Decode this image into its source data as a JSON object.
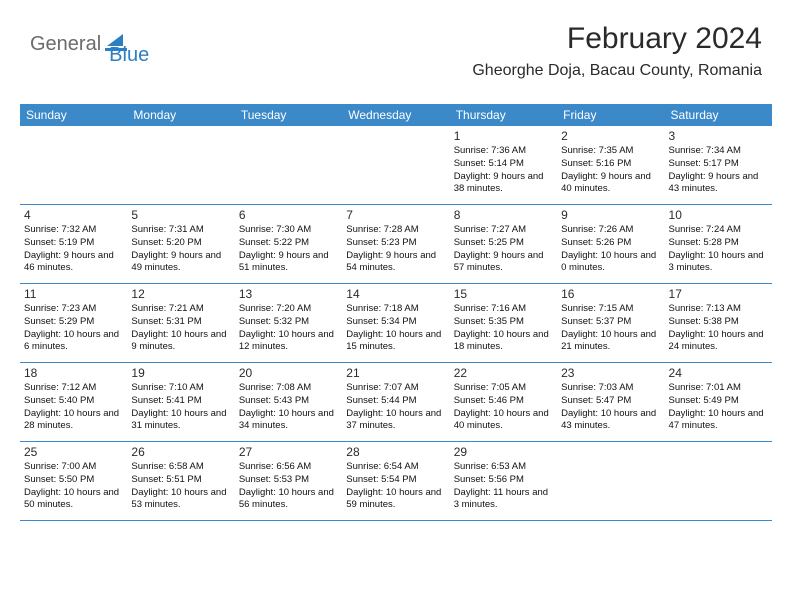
{
  "brand": {
    "part1": "General",
    "part2": "Blue"
  },
  "title": "February 2024",
  "location": "Gheorghe Doja, Bacau County, Romania",
  "colors": {
    "header_bg": "#3b89c9",
    "header_text": "#ffffff",
    "rule": "#3b89c9",
    "logo_gray": "#6b6b6b",
    "logo_blue": "#2d7fc4",
    "text": "#2a2a2a"
  },
  "dayNames": [
    "Sunday",
    "Monday",
    "Tuesday",
    "Wednesday",
    "Thursday",
    "Friday",
    "Saturday"
  ],
  "weeks": [
    [
      null,
      null,
      null,
      null,
      {
        "n": "1",
        "sr": "7:36 AM",
        "ss": "5:14 PM",
        "dl": "9 hours and 38 minutes."
      },
      {
        "n": "2",
        "sr": "7:35 AM",
        "ss": "5:16 PM",
        "dl": "9 hours and 40 minutes."
      },
      {
        "n": "3",
        "sr": "7:34 AM",
        "ss": "5:17 PM",
        "dl": "9 hours and 43 minutes."
      }
    ],
    [
      {
        "n": "4",
        "sr": "7:32 AM",
        "ss": "5:19 PM",
        "dl": "9 hours and 46 minutes."
      },
      {
        "n": "5",
        "sr": "7:31 AM",
        "ss": "5:20 PM",
        "dl": "9 hours and 49 minutes."
      },
      {
        "n": "6",
        "sr": "7:30 AM",
        "ss": "5:22 PM",
        "dl": "9 hours and 51 minutes."
      },
      {
        "n": "7",
        "sr": "7:28 AM",
        "ss": "5:23 PM",
        "dl": "9 hours and 54 minutes."
      },
      {
        "n": "8",
        "sr": "7:27 AM",
        "ss": "5:25 PM",
        "dl": "9 hours and 57 minutes."
      },
      {
        "n": "9",
        "sr": "7:26 AM",
        "ss": "5:26 PM",
        "dl": "10 hours and 0 minutes."
      },
      {
        "n": "10",
        "sr": "7:24 AM",
        "ss": "5:28 PM",
        "dl": "10 hours and 3 minutes."
      }
    ],
    [
      {
        "n": "11",
        "sr": "7:23 AM",
        "ss": "5:29 PM",
        "dl": "10 hours and 6 minutes."
      },
      {
        "n": "12",
        "sr": "7:21 AM",
        "ss": "5:31 PM",
        "dl": "10 hours and 9 minutes."
      },
      {
        "n": "13",
        "sr": "7:20 AM",
        "ss": "5:32 PM",
        "dl": "10 hours and 12 minutes."
      },
      {
        "n": "14",
        "sr": "7:18 AM",
        "ss": "5:34 PM",
        "dl": "10 hours and 15 minutes."
      },
      {
        "n": "15",
        "sr": "7:16 AM",
        "ss": "5:35 PM",
        "dl": "10 hours and 18 minutes."
      },
      {
        "n": "16",
        "sr": "7:15 AM",
        "ss": "5:37 PM",
        "dl": "10 hours and 21 minutes."
      },
      {
        "n": "17",
        "sr": "7:13 AM",
        "ss": "5:38 PM",
        "dl": "10 hours and 24 minutes."
      }
    ],
    [
      {
        "n": "18",
        "sr": "7:12 AM",
        "ss": "5:40 PM",
        "dl": "10 hours and 28 minutes."
      },
      {
        "n": "19",
        "sr": "7:10 AM",
        "ss": "5:41 PM",
        "dl": "10 hours and 31 minutes."
      },
      {
        "n": "20",
        "sr": "7:08 AM",
        "ss": "5:43 PM",
        "dl": "10 hours and 34 minutes."
      },
      {
        "n": "21",
        "sr": "7:07 AM",
        "ss": "5:44 PM",
        "dl": "10 hours and 37 minutes."
      },
      {
        "n": "22",
        "sr": "7:05 AM",
        "ss": "5:46 PM",
        "dl": "10 hours and 40 minutes."
      },
      {
        "n": "23",
        "sr": "7:03 AM",
        "ss": "5:47 PM",
        "dl": "10 hours and 43 minutes."
      },
      {
        "n": "24",
        "sr": "7:01 AM",
        "ss": "5:49 PM",
        "dl": "10 hours and 47 minutes."
      }
    ],
    [
      {
        "n": "25",
        "sr": "7:00 AM",
        "ss": "5:50 PM",
        "dl": "10 hours and 50 minutes."
      },
      {
        "n": "26",
        "sr": "6:58 AM",
        "ss": "5:51 PM",
        "dl": "10 hours and 53 minutes."
      },
      {
        "n": "27",
        "sr": "6:56 AM",
        "ss": "5:53 PM",
        "dl": "10 hours and 56 minutes."
      },
      {
        "n": "28",
        "sr": "6:54 AM",
        "ss": "5:54 PM",
        "dl": "10 hours and 59 minutes."
      },
      {
        "n": "29",
        "sr": "6:53 AM",
        "ss": "5:56 PM",
        "dl": "11 hours and 3 minutes."
      },
      null,
      null
    ]
  ],
  "labels": {
    "sunrise": "Sunrise:",
    "sunset": "Sunset:",
    "daylight": "Daylight:"
  }
}
